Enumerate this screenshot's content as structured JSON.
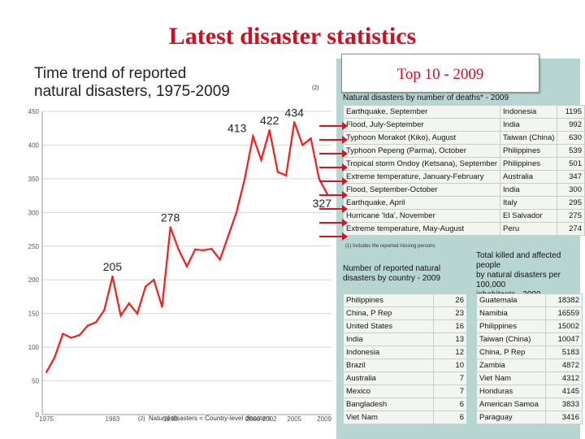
{
  "slide": {
    "title": "Latest disaster statistics",
    "top10_label": "Top 10 - 2009"
  },
  "chart_data": {
    "type": "line",
    "title": "Time trend of reported natural disasters, 1975-2009",
    "title_line1": "Time trend of reported",
    "title_line2": "natural disasters, 1975-2009",
    "title_superscript": "(2)",
    "xlabel": "Natural disasters = Country-level disasters",
    "xlabel_prefix": "(2)",
    "x": [
      1975,
      1976,
      1977,
      1978,
      1979,
      1980,
      1981,
      1982,
      1983,
      1984,
      1985,
      1986,
      1987,
      1988,
      1989,
      1990,
      1991,
      1992,
      1993,
      1994,
      1995,
      1996,
      1997,
      1998,
      1999,
      2000,
      2001,
      2002,
      2003,
      2004,
      2005,
      2006,
      2007,
      2008,
      2009
    ],
    "values": [
      63,
      85,
      120,
      114,
      118,
      132,
      137,
      155,
      205,
      147,
      165,
      150,
      190,
      200,
      160,
      278,
      245,
      220,
      245,
      244,
      246,
      230,
      265,
      300,
      350,
      413,
      378,
      422,
      360,
      355,
      434,
      400,
      410,
      350,
      327
    ],
    "xticks": [
      "1975",
      "1983",
      "1990",
      "2000",
      "2002",
      "2005",
      "2009"
    ],
    "xtick_values": [
      1975,
      1983,
      1990,
      2000,
      2002,
      2005,
      2009
    ],
    "yticks": [
      "0",
      "50",
      "100",
      "150",
      "200",
      "250",
      "300",
      "350",
      "400",
      "450"
    ],
    "ylim": [
      0,
      450
    ],
    "xlim": [
      1974.5,
      2009.5
    ],
    "grid": true,
    "annotations": [
      {
        "year": 1983,
        "value": 205,
        "label": "205"
      },
      {
        "year": 1990,
        "value": 278,
        "label": "278"
      },
      {
        "year": 2000,
        "value": 413,
        "label": "413"
      },
      {
        "year": 2002,
        "value": 422,
        "label": "422"
      },
      {
        "year": 2005,
        "value": 434,
        "label": "434"
      },
      {
        "year": 2009,
        "value": 327,
        "label": "327"
      }
    ],
    "line_color": "#ff1a1a"
  },
  "deaths_table": {
    "title": "Natural disasters by number of deaths* - 2009",
    "footnote": "(1) Includes the reported missing persons",
    "rows": [
      [
        "Earthquake, September",
        "Indonesia",
        "1195"
      ],
      [
        "Flood, July-September",
        "India",
        "992"
      ],
      [
        "Typhoon Morakot (Kiko), August",
        "Taiwan (China)",
        "630"
      ],
      [
        "Typhoon Pepeng (Parma), October",
        "Philippines",
        "539"
      ],
      [
        "Tropical storm Ondoy (Ketsana), September",
        "Philippines",
        "501"
      ],
      [
        "Extreme temperature, January-February",
        "Australia",
        "347"
      ],
      [
        "Flood, September-October",
        "India",
        "300"
      ],
      [
        "Earthquake, April",
        "Italy",
        "295"
      ],
      [
        "Hurricane 'Ida', November",
        "El Salvador",
        "275"
      ],
      [
        "Extreme temperature, May-August",
        "Peru",
        "274"
      ]
    ]
  },
  "country_table": {
    "title_lines": [
      "Number of reported natural",
      "disasters by country - 2009"
    ],
    "rows": [
      [
        "Philippines",
        "26"
      ],
      [
        "China, P Rep",
        "23"
      ],
      [
        "United States",
        "16"
      ],
      [
        "India",
        "13"
      ],
      [
        "Indonesia",
        "12"
      ],
      [
        "Brazil",
        "10"
      ],
      [
        "Australia",
        "7"
      ],
      [
        "Mexico",
        "7"
      ],
      [
        "Bangladesh",
        "6"
      ],
      [
        "Viet Nam",
        "6"
      ]
    ]
  },
  "affected_table": {
    "title_lines": [
      "Total killed and affected people",
      "by natural disasters per 100,000",
      "inhabitants - 2009"
    ],
    "rows": [
      [
        "Guatemala",
        "18382"
      ],
      [
        "Namibia",
        "16559"
      ],
      [
        "Philippines",
        "15002"
      ],
      [
        "Taiwan (China)",
        "10047"
      ],
      [
        "China, P Rep",
        "5183"
      ],
      [
        "Zambia",
        "4872"
      ],
      [
        "Viet Nam",
        "4312"
      ],
      [
        "Honduras",
        "4145"
      ],
      [
        "American Samoa",
        "3833"
      ],
      [
        "Paraguay",
        "3416"
      ]
    ]
  }
}
